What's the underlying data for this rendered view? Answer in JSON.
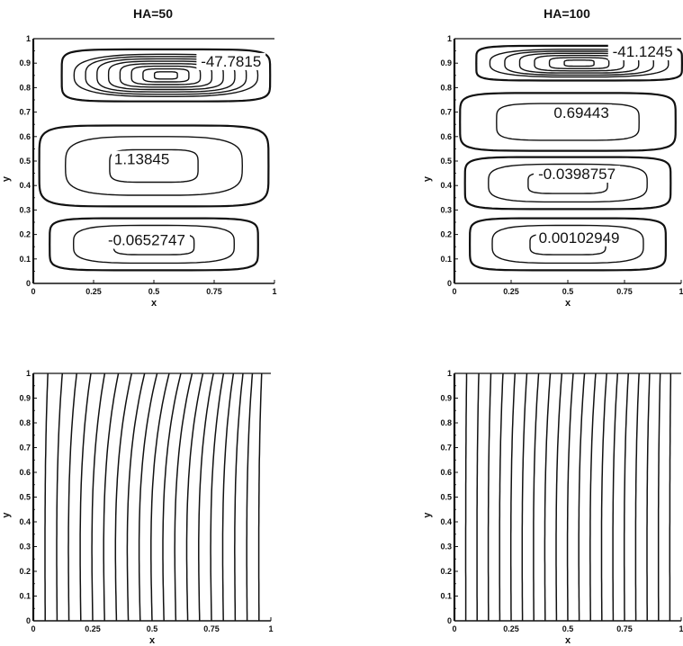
{
  "chart_data": [
    {
      "type": "contour",
      "title": "HA=50",
      "xlabel": "x",
      "ylabel": "y",
      "xlim": [
        0,
        1
      ],
      "ylim": [
        0,
        1
      ],
      "x_ticks": [
        "0",
        "0.25",
        "0.5",
        "0.75",
        "1"
      ],
      "y_ticks": [
        "0",
        "0.1",
        "0.2",
        "0.3",
        "0.4",
        "0.5",
        "0.6",
        "0.7",
        "0.8",
        "0.9",
        "1"
      ],
      "contour_labels": [
        {
          "text": "-47.7815",
          "x": 0.82,
          "y": 0.89
        },
        {
          "text": "1.13845",
          "x": 0.45,
          "y": 0.49
        },
        {
          "text": "-0.0652747",
          "x": 0.47,
          "y": 0.16
        }
      ],
      "cells": [
        {
          "role": "vortex",
          "xc": 0.55,
          "yc": 0.85,
          "rx": 0.4,
          "ry": 0.09,
          "n": 8
        },
        {
          "role": "vortex",
          "xc": 0.5,
          "yc": 0.48,
          "rx": 0.44,
          "ry": 0.14,
          "n": 2
        },
        {
          "role": "vortex",
          "xc": 0.5,
          "yc": 0.16,
          "rx": 0.4,
          "ry": 0.09,
          "n": 2
        }
      ]
    },
    {
      "type": "contour",
      "title": "HA=100",
      "xlabel": "x",
      "ylabel": "y",
      "xlim": [
        0,
        1
      ],
      "ylim": [
        0,
        1
      ],
      "x_ticks": [
        "0",
        "0.25",
        "0.5",
        "0.75",
        "1"
      ],
      "y_ticks": [
        "0",
        "0.1",
        "0.2",
        "0.3",
        "0.4",
        "0.5",
        "0.6",
        "0.7",
        "0.8",
        "0.9",
        "1"
      ],
      "contour_labels": [
        {
          "text": "-41.1245",
          "x": 0.83,
          "y": 0.93
        },
        {
          "text": "0.69443",
          "x": 0.56,
          "y": 0.68
        },
        {
          "text": "-0.0398757",
          "x": 0.54,
          "y": 0.43
        },
        {
          "text": "0.00102949",
          "x": 0.55,
          "y": 0.17
        }
      ],
      "cells": [
        {
          "role": "vortex",
          "xc": 0.55,
          "yc": 0.9,
          "rx": 0.42,
          "ry": 0.06,
          "n": 6
        },
        {
          "role": "vortex",
          "xc": 0.5,
          "yc": 0.66,
          "rx": 0.44,
          "ry": 0.1,
          "n": 1
        },
        {
          "role": "vortex",
          "xc": 0.5,
          "yc": 0.41,
          "rx": 0.42,
          "ry": 0.09,
          "n": 2
        },
        {
          "role": "vortex",
          "xc": 0.5,
          "yc": 0.16,
          "rx": 0.4,
          "ry": 0.09,
          "n": 2
        }
      ]
    },
    {
      "type": "contour",
      "title": "",
      "xlabel": "x",
      "ylabel": "y",
      "xlim": [
        0,
        1
      ],
      "ylim": [
        0,
        1
      ],
      "x_ticks": [
        "0",
        "0.25",
        "0.5",
        "0.75",
        "1"
      ],
      "y_ticks": [
        "0",
        "0.1",
        "0.2",
        "0.3",
        "0.4",
        "0.5",
        "0.6",
        "0.7",
        "0.8",
        "0.9",
        "1"
      ],
      "isotherms": {
        "count": 19,
        "curvature": 0.06
      }
    },
    {
      "type": "contour",
      "title": "",
      "xlabel": "x",
      "ylabel": "y",
      "xlim": [
        0,
        1
      ],
      "ylim": [
        0,
        1
      ],
      "x_ticks": [
        "0",
        "0.25",
        "0.5",
        "0.75",
        "1"
      ],
      "y_ticks": [
        "0",
        "0.1",
        "0.2",
        "0.3",
        "0.4",
        "0.5",
        "0.6",
        "0.7",
        "0.8",
        "0.9",
        "1"
      ],
      "isotherms": {
        "count": 19,
        "curvature": 0.02
      }
    }
  ]
}
